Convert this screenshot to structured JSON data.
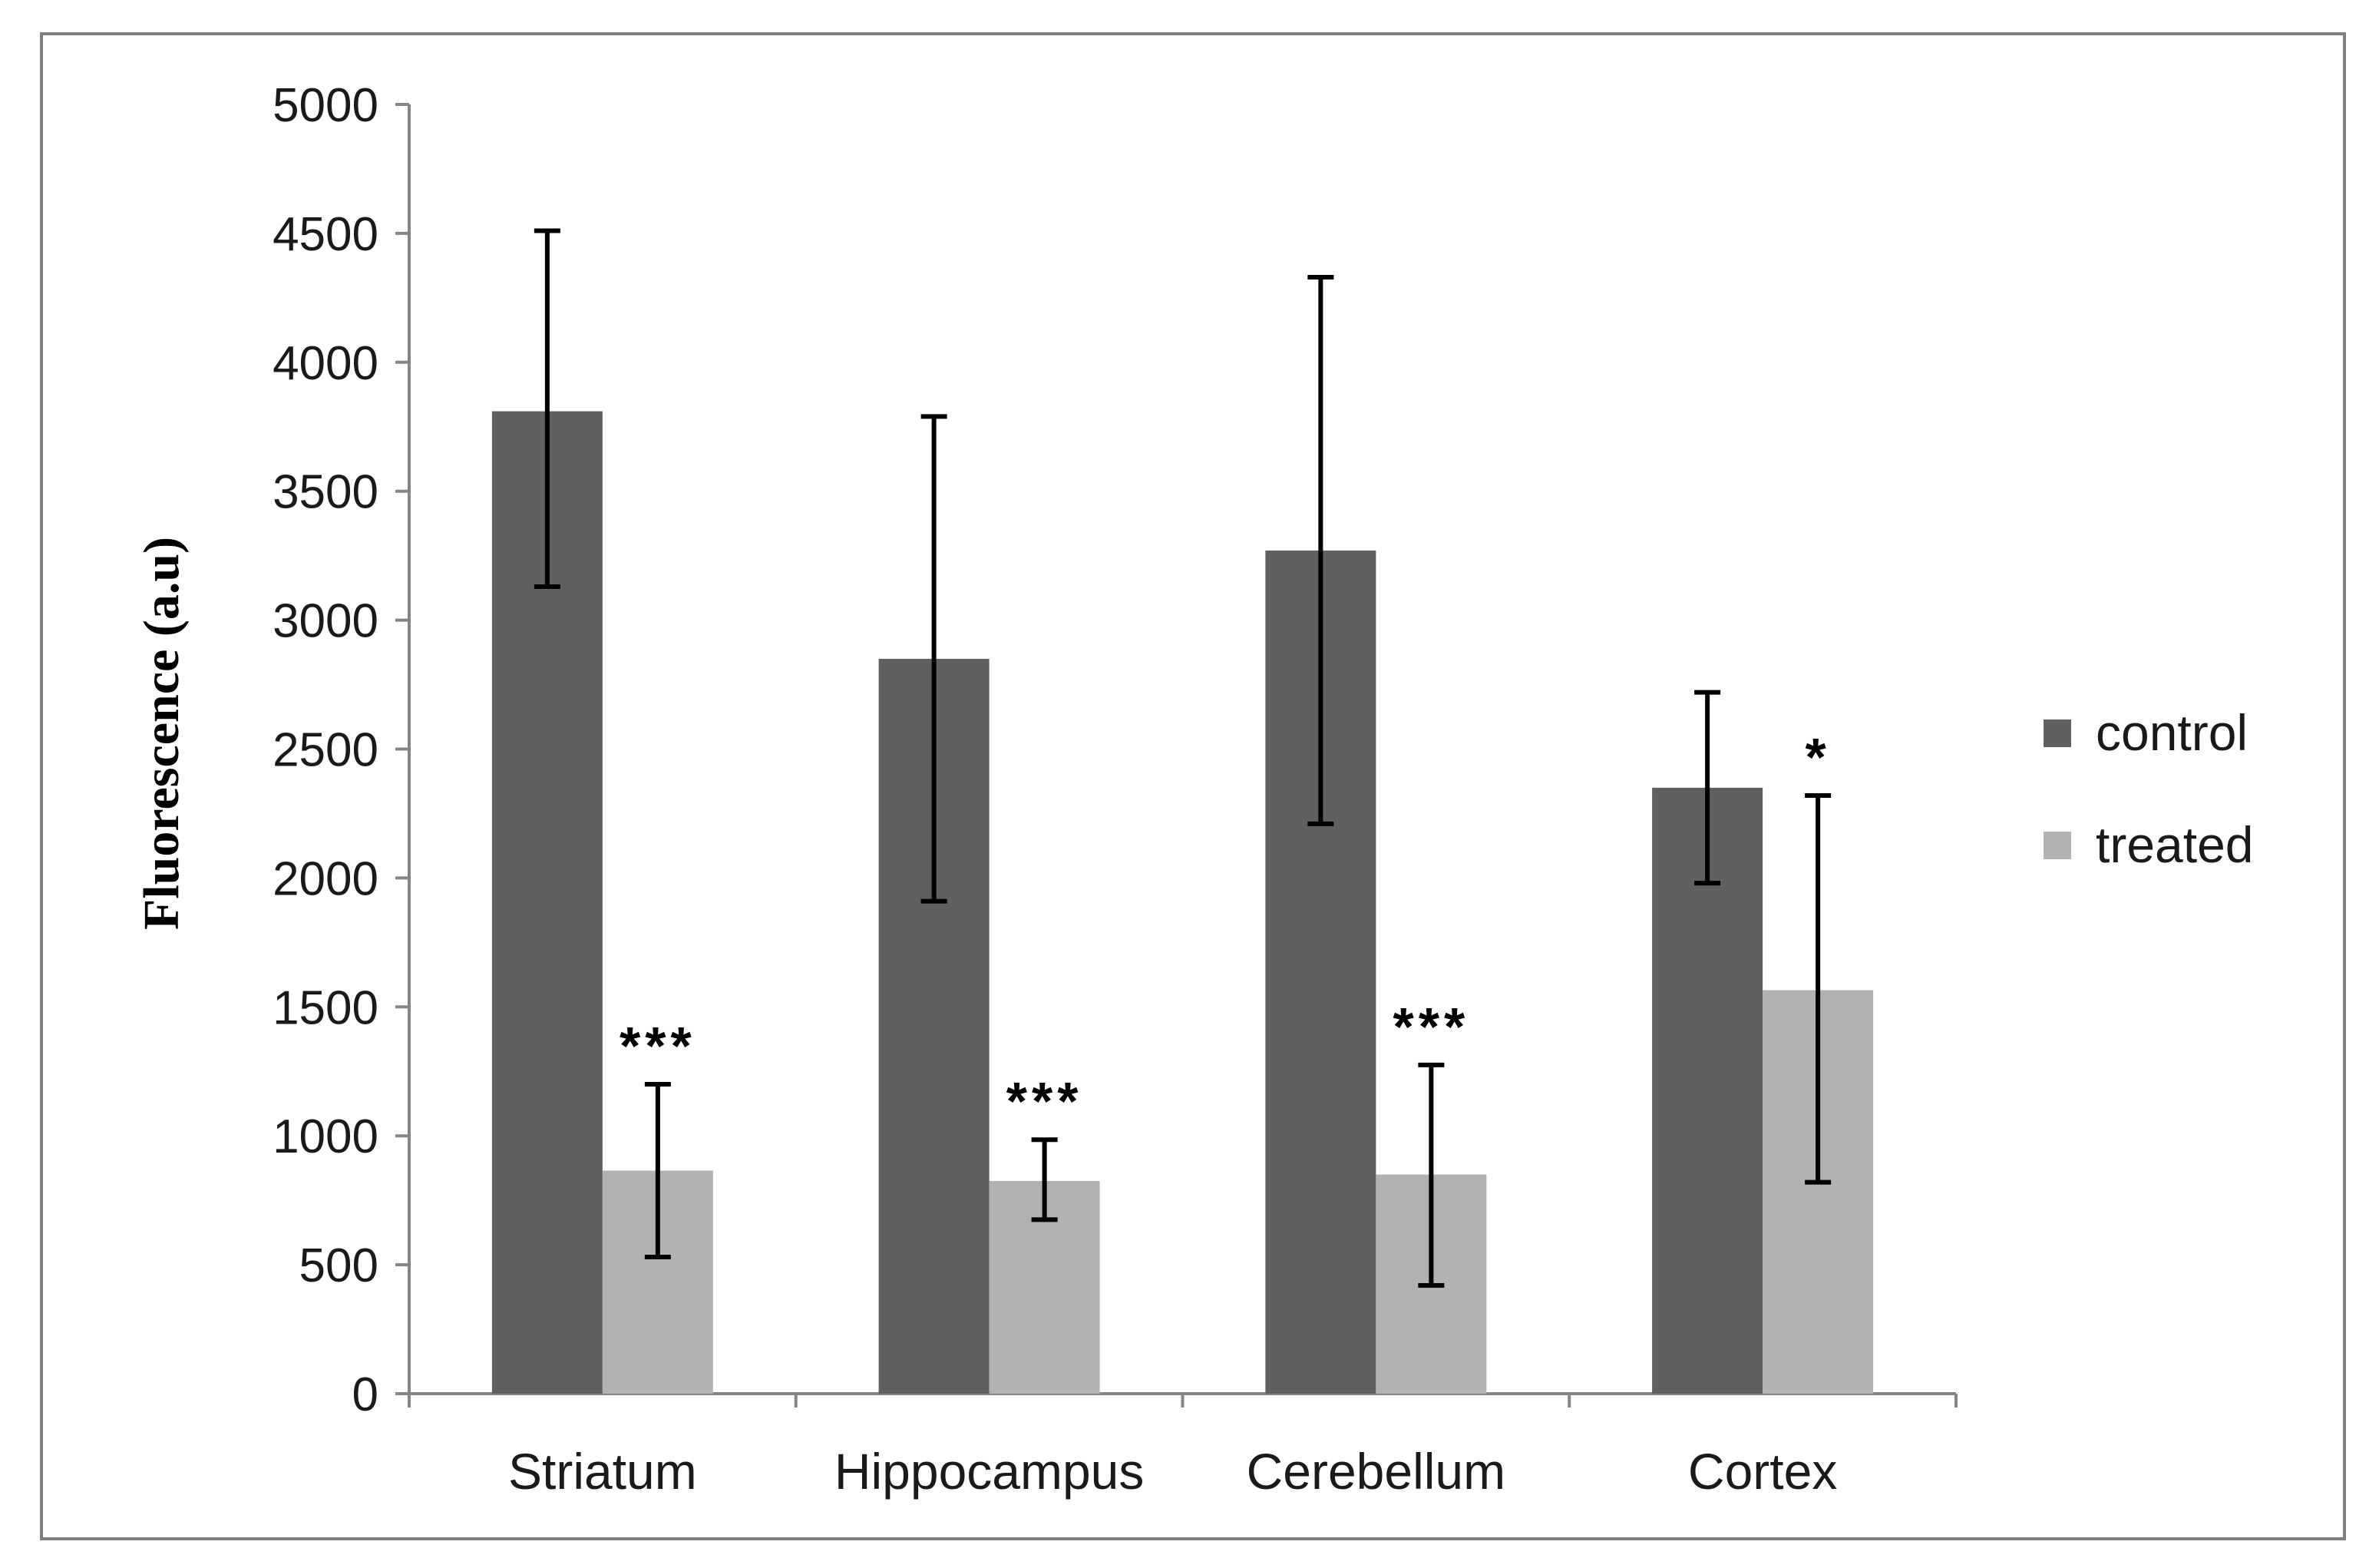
{
  "chart_data": {
    "type": "bar",
    "title": "",
    "xlabel": "",
    "ylabel": "Fluorescence (a.u)",
    "ylim": [
      0,
      5000
    ],
    "yticks": [
      "0",
      "500",
      "1000",
      "1500",
      "2000",
      "2500",
      "3000",
      "3500",
      "4000",
      "4500",
      "5000"
    ],
    "grid": false,
    "legend_position": "right",
    "categories": [
      "Striatum",
      "Hippocampus",
      "Cerebellum",
      "Cortex"
    ],
    "series": [
      {
        "name": "control",
        "color": "#606060",
        "values": [
          3810,
          2850,
          3270,
          2350
        ],
        "error_low": [
          3130,
          1910,
          2210,
          1980
        ],
        "error_high": [
          4510,
          3790,
          4330,
          2720
        ],
        "annotations": [
          "",
          "",
          "",
          ""
        ]
      },
      {
        "name": "treated",
        "color": "#b2b2b2",
        "values": [
          865,
          825,
          850,
          1565
        ],
        "error_low": [
          530,
          675,
          420,
          820
        ],
        "error_high": [
          1200,
          985,
          1275,
          2320
        ],
        "annotations": [
          "***",
          "***",
          "***",
          "*"
        ]
      }
    ]
  }
}
